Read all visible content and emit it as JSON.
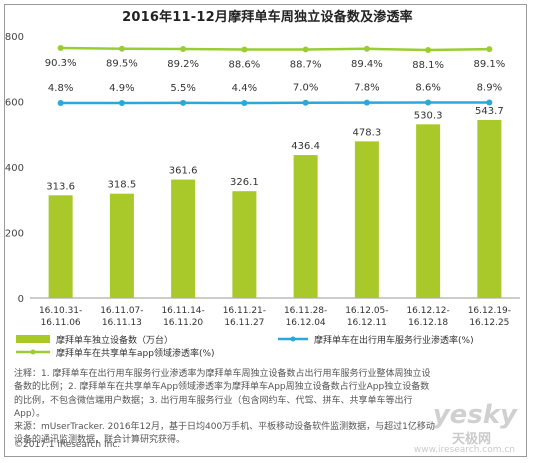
{
  "chart_data": {
    "type": "bar+line",
    "title": "2016年11-12月摩拜单车周独立设备数及渗透率",
    "categories": [
      [
        "16.10.31-",
        "16.11.06"
      ],
      [
        "16.11.07-",
        "16.11.13"
      ],
      [
        "16.11.14-",
        "16.11.20"
      ],
      [
        "16.11.21-",
        "16.11.27"
      ],
      [
        "16.11.28-",
        "16.12.04"
      ],
      [
        "16.12.05-",
        "16.12.11"
      ],
      [
        "16.12.12-",
        "16.12.18"
      ],
      [
        "16.12.19-",
        "16.12.25"
      ]
    ],
    "ylim": [
      0,
      800
    ],
    "yticks": [
      "0",
      "200",
      "400",
      "600",
      "800"
    ],
    "bars": {
      "name": "摩拜单车独立设备数（万台）",
      "color": "#a9c82a",
      "values": [
        313.6,
        318.5,
        361.6,
        326.1,
        436.4,
        478.3,
        530.3,
        543.7
      ],
      "labels": [
        "313.6",
        "318.5",
        "361.6",
        "326.1",
        "436.4",
        "478.3",
        "530.3",
        "543.7"
      ]
    },
    "line_service": {
      "name": "摩拜单车在出行用车服务行业渗透率(%)",
      "color": "#2aa8dc",
      "values": [
        4.8,
        4.9,
        5.5,
        4.4,
        7.0,
        7.8,
        8.6,
        8.9
      ],
      "labels": [
        "4.8%",
        "4.9%",
        "5.5%",
        "4.4%",
        "7.0%",
        "7.8%",
        "8.6%",
        "8.9%"
      ]
    },
    "line_share": {
      "name": "摩拜单车在共享单车app领域渗透率(%)",
      "color": "#9acd32",
      "values": [
        90.3,
        89.5,
        89.2,
        88.6,
        88.7,
        89.4,
        88.1,
        89.1
      ],
      "labels": [
        "90.3%",
        "89.5%",
        "89.2%",
        "88.6%",
        "88.7%",
        "89.4%",
        "88.1%",
        "89.1%"
      ]
    },
    "legend_position": "bottom"
  },
  "notes": {
    "line1": "注释：1. 摩拜单车在出行用车服务行业渗透率为摩拜单车周独立设备数占出行用车服务行业整体周独立设",
    "line2": "备数的比例；2. 摩拜单车在共享单车App领域渗透率为摩拜单车App周独立设备数占行业App独立设备数",
    "line3": "的比例，不包含微信端用户数据；3. 出行用车服务行业（包含网约车、代驾、拼车、共享单车等出行",
    "line4": "App）。",
    "line5": "来源：mUserTracker. 2016年12月，基于日均400万手机、平板移动设备软件监测数据，与超过1亿移动",
    "line6": "设备的通讯监测数据，联合计算研究获得。"
  },
  "footer": "©2017.1  iResearch Inc.",
  "watermark": {
    "brand": "yesky",
    "sub": "天极网",
    "url": "www.iresearch.com.cn"
  }
}
